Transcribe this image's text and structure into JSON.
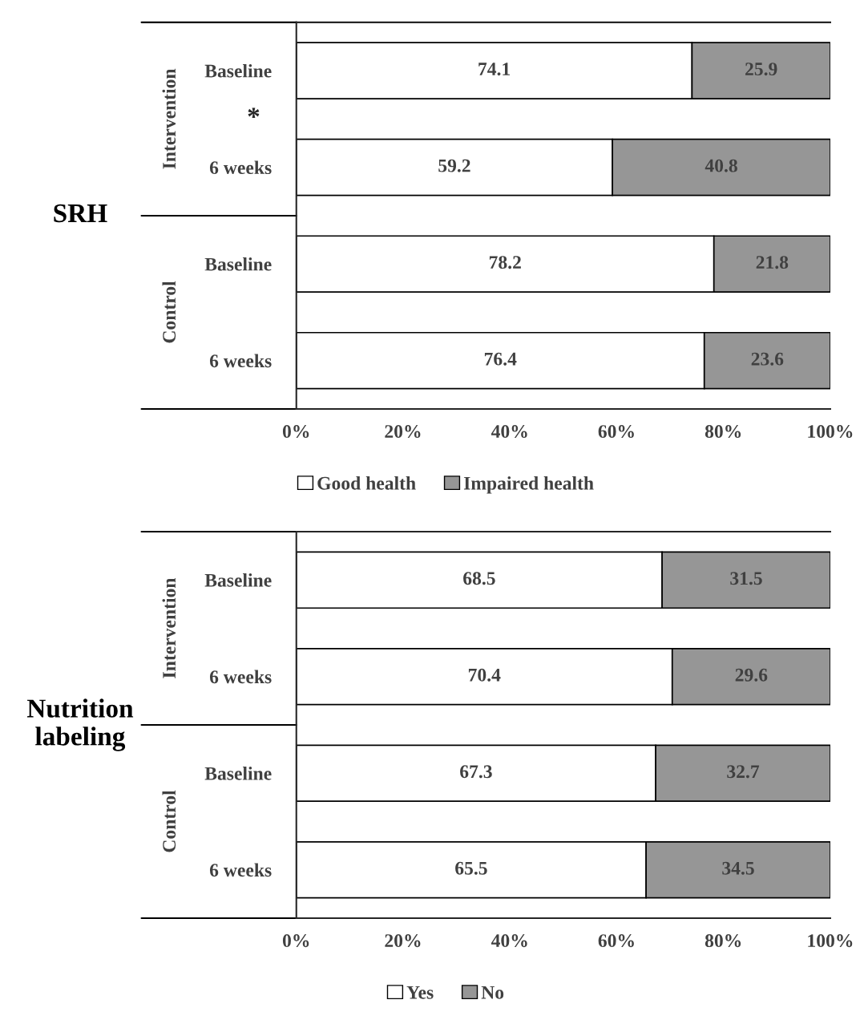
{
  "chart_data": [
    {
      "type": "bar",
      "orientation": "horizontal",
      "stacked": true,
      "title": "SRH",
      "categories": [
        "Baseline",
        "6 weeks",
        "Baseline",
        "6 weeks"
      ],
      "series": [
        {
          "name": "Good health",
          "color": "#ffffff",
          "values": [
            74.1,
            59.2,
            78.2,
            76.4
          ]
        },
        {
          "name": "Impaired health",
          "color": "#969696",
          "values": [
            25.9,
            40.8,
            21.8,
            23.6
          ]
        }
      ],
      "xlim": [
        0,
        100
      ],
      "xticks": [
        {
          "value": 0,
          "label": "0%"
        },
        {
          "value": 20,
          "label": "20%"
        },
        {
          "value": 40,
          "label": "40%"
        },
        {
          "value": 60,
          "label": "60%"
        },
        {
          "value": 80,
          "label": "80%"
        },
        {
          "value": 100,
          "label": "100%"
        }
      ],
      "data_labels": true,
      "legend": "bottom",
      "annotations": [
        "Intervention",
        "Control",
        "*"
      ]
    },
    {
      "type": "bar",
      "orientation": "horizontal",
      "stacked": true,
      "title": "Nutrition labeling",
      "categories": [
        "Baseline",
        "6 weeks",
        "Baseline",
        "6 weeks"
      ],
      "series": [
        {
          "name": "Yes",
          "color": "#ffffff",
          "values": [
            68.5,
            70.4,
            67.3,
            65.5
          ]
        },
        {
          "name": "No",
          "color": "#969696",
          "values": [
            31.5,
            29.6,
            32.7,
            34.5
          ]
        }
      ],
      "xlim": [
        0,
        100
      ],
      "xticks": [
        {
          "value": 0,
          "label": "0%"
        },
        {
          "value": 20,
          "label": "20%"
        },
        {
          "value": 40,
          "label": "40%"
        },
        {
          "value": 60,
          "label": "60%"
        },
        {
          "value": 80,
          "label": "80%"
        },
        {
          "value": 100,
          "label": "100%"
        }
      ],
      "data_labels": true,
      "legend": "bottom",
      "annotations": [
        "Intervention",
        "Control"
      ]
    }
  ]
}
